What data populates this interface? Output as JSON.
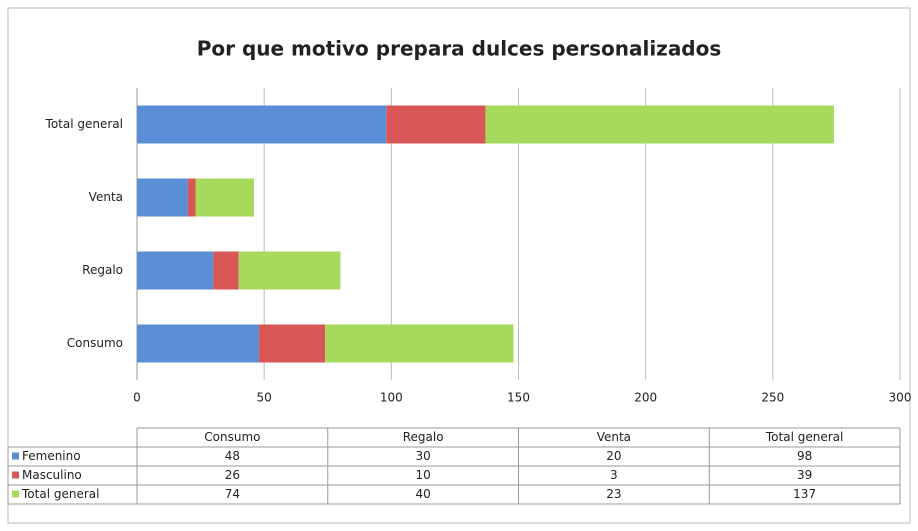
{
  "chart_data": {
    "type": "bar",
    "orientation": "horizontal",
    "stacked": true,
    "title": "Por que motivo prepara dulces personalizados",
    "categories": [
      "Consumo",
      "Regalo",
      "Venta",
      "Total general"
    ],
    "series": [
      {
        "name": "Femenino",
        "color": "#5a8ed6",
        "values": [
          48,
          30,
          20,
          98
        ]
      },
      {
        "name": "Masculino",
        "color": "#d95656",
        "values": [
          26,
          10,
          3,
          39
        ]
      },
      {
        "name": "Total general",
        "color": "#a6d95c",
        "values": [
          74,
          40,
          23,
          137
        ]
      }
    ],
    "xlim": [
      0,
      300
    ],
    "xticks": [
      0,
      50,
      100,
      150,
      200,
      250,
      300
    ],
    "grid": true,
    "data_table": true
  }
}
